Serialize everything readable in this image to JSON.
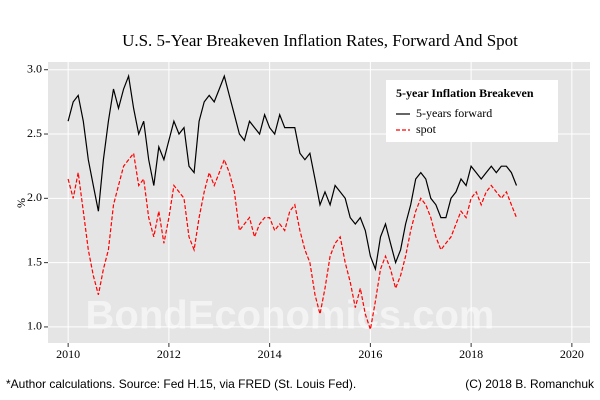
{
  "chart_data": {
    "type": "line",
    "title": "U.S. 5-Year Breakeven Inflation Rates, Forward And Spot",
    "y_label": "%",
    "legend_title": "5-year Inflation Breakeven",
    "legend_position": "top-right",
    "watermark": "BondEconomics.com",
    "footnote": "*Author calculations. Source: Fed H.15, via FRED (St. Louis Fed).",
    "credit": "(C) 2018 B. Romanchuk",
    "grid": true,
    "background": "#e5e5e5",
    "xlim": [
      2009.6,
      2020.36
    ],
    "xticks": [
      2010,
      2012,
      2014,
      2016,
      2018,
      2020
    ],
    "ylim": [
      0.875,
      3.06
    ],
    "yticks": [
      {
        "value": 1,
        "label": "1.0"
      },
      {
        "value": 1.5,
        "label": "1.5"
      },
      {
        "value": 2,
        "label": "2.0"
      },
      {
        "value": 2.5,
        "label": "2.5"
      },
      {
        "value": 3,
        "label": "3.0"
      }
    ],
    "x": [
      2010.0,
      2010.1,
      2010.2,
      2010.3,
      2010.4,
      2010.5,
      2010.6,
      2010.7,
      2010.8,
      2010.9,
      2011.0,
      2011.1,
      2011.2,
      2011.3,
      2011.4,
      2011.5,
      2011.6,
      2011.7,
      2011.8,
      2011.9,
      2012.0,
      2012.1,
      2012.2,
      2012.3,
      2012.4,
      2012.5,
      2012.6,
      2012.7,
      2012.8,
      2012.9,
      2013.0,
      2013.1,
      2013.2,
      2013.3,
      2013.4,
      2013.5,
      2013.6,
      2013.7,
      2013.8,
      2013.9,
      2014.0,
      2014.1,
      2014.2,
      2014.3,
      2014.4,
      2014.5,
      2014.6,
      2014.7,
      2014.8,
      2014.9,
      2015.0,
      2015.1,
      2015.2,
      2015.3,
      2015.4,
      2015.5,
      2015.6,
      2015.7,
      2015.8,
      2015.9,
      2016.0,
      2016.1,
      2016.2,
      2016.3,
      2016.4,
      2016.5,
      2016.6,
      2016.7,
      2016.8,
      2016.9,
      2017.0,
      2017.1,
      2017.2,
      2017.3,
      2017.4,
      2017.5,
      2017.6,
      2017.7,
      2017.8,
      2017.9,
      2018.0,
      2018.1,
      2018.2,
      2018.3,
      2018.4,
      2018.5,
      2018.6,
      2018.7,
      2018.8,
      2018.9
    ],
    "series": [
      {
        "name": "5-years forward",
        "color": "#000000",
        "linestyle": "solid",
        "values": [
          2.6,
          2.75,
          2.8,
          2.6,
          2.3,
          2.1,
          1.9,
          2.3,
          2.6,
          2.85,
          2.7,
          2.85,
          2.95,
          2.7,
          2.5,
          2.6,
          2.3,
          2.1,
          2.4,
          2.3,
          2.45,
          2.6,
          2.5,
          2.55,
          2.25,
          2.2,
          2.6,
          2.75,
          2.8,
          2.75,
          2.85,
          2.95,
          2.8,
          2.65,
          2.5,
          2.45,
          2.6,
          2.55,
          2.5,
          2.65,
          2.55,
          2.5,
          2.65,
          2.55,
          2.55,
          2.55,
          2.35,
          2.3,
          2.35,
          2.15,
          1.95,
          2.05,
          1.95,
          2.1,
          2.05,
          2.0,
          1.85,
          1.8,
          1.85,
          1.75,
          1.55,
          1.45,
          1.7,
          1.8,
          1.65,
          1.5,
          1.6,
          1.8,
          1.95,
          2.15,
          2.2,
          2.15,
          2.0,
          1.95,
          1.85,
          1.85,
          2.0,
          2.05,
          2.15,
          2.1,
          2.25,
          2.2,
          2.15,
          2.2,
          2.25,
          2.2,
          2.25,
          2.25,
          2.2,
          2.1
        ]
      },
      {
        "name": "spot",
        "color": "#ff0000",
        "linestyle": "dashed",
        "values": [
          2.15,
          2.0,
          2.2,
          1.9,
          1.6,
          1.4,
          1.25,
          1.45,
          1.6,
          1.95,
          2.1,
          2.25,
          2.3,
          2.35,
          2.1,
          2.15,
          1.85,
          1.7,
          1.9,
          1.65,
          1.85,
          2.1,
          2.05,
          2.0,
          1.7,
          1.6,
          1.85,
          2.05,
          2.2,
          2.1,
          2.2,
          2.3,
          2.2,
          2.05,
          1.75,
          1.8,
          1.85,
          1.7,
          1.8,
          1.85,
          1.85,
          1.75,
          1.8,
          1.75,
          1.9,
          1.95,
          1.75,
          1.6,
          1.5,
          1.25,
          1.1,
          1.3,
          1.55,
          1.65,
          1.7,
          1.5,
          1.35,
          1.15,
          1.3,
          1.1,
          0.98,
          1.2,
          1.45,
          1.55,
          1.45,
          1.3,
          1.4,
          1.55,
          1.75,
          1.9,
          2.0,
          1.95,
          1.85,
          1.7,
          1.6,
          1.65,
          1.7,
          1.8,
          1.9,
          1.85,
          2.0,
          2.05,
          1.95,
          2.05,
          2.1,
          2.05,
          2.0,
          2.05,
          1.95,
          1.85
        ]
      }
    ]
  }
}
